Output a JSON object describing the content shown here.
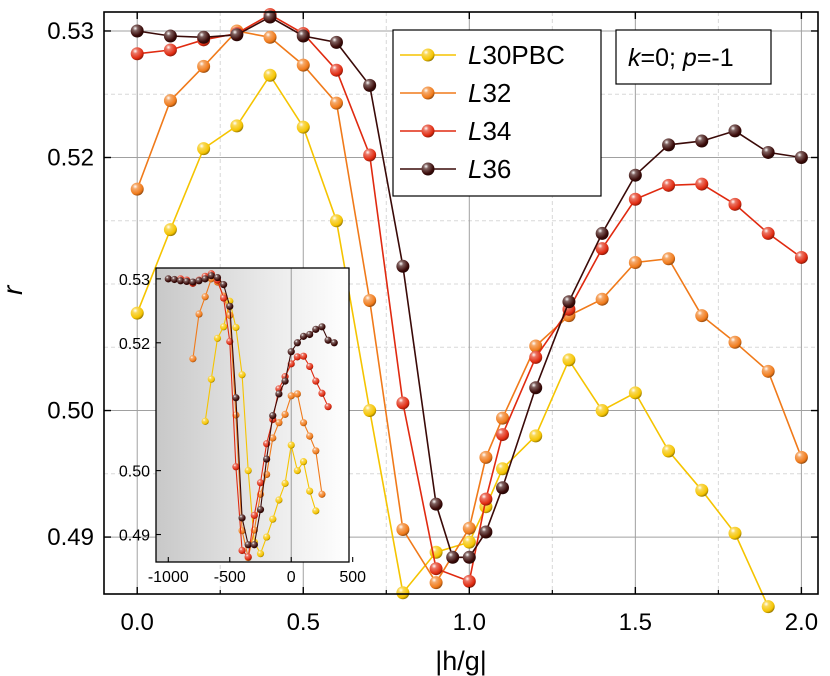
{
  "chart_data": [
    {
      "type": "line",
      "xlabel": "|h/g|",
      "ylabel": "r",
      "xlim": [
        -0.1,
        2.05
      ],
      "ylim": [
        0.4855,
        0.5315
      ],
      "xticks": [
        "0.0",
        "0.5",
        "1.0",
        "1.5",
        "2.0"
      ],
      "yticks": [
        "0.49",
        "0.50",
        "0.52",
        "0.53"
      ],
      "annotation": {
        "k_label": "k",
        "k_value": "=0; ",
        "p_label": "p",
        "p_value": "=-1"
      },
      "series": [
        {
          "name": "L30PBC",
          "prefix": "L",
          "suffix": "30PBC",
          "color": "#f5c400",
          "x": [
            0,
            0.1,
            0.2,
            0.3,
            0.4,
            0.5,
            0.6,
            0.7,
            0.8,
            0.9,
            1.0,
            1.05,
            1.1,
            1.2,
            1.3,
            1.4,
            1.5,
            1.6,
            1.7,
            1.8,
            1.9
          ],
          "y": [
            0.5077,
            0.5143,
            0.5207,
            0.5225,
            0.5265,
            0.5224,
            0.515,
            0.5,
            0.4856,
            0.4888,
            0.4896,
            0.4924,
            0.4954,
            0.498,
            0.504,
            0.5,
            0.5014,
            0.4968,
            0.4937,
            0.4903,
            0.4845
          ]
        },
        {
          "name": "L32",
          "prefix": "L",
          "suffix": "32",
          "color": "#f07a1a",
          "x": [
            0,
            0.1,
            0.2,
            0.3,
            0.4,
            0.5,
            0.6,
            0.7,
            0.8,
            0.9,
            1.0,
            1.05,
            1.1,
            1.2,
            1.3,
            1.4,
            1.5,
            1.6,
            1.7,
            1.8,
            1.9,
            2.0
          ],
          "y": [
            0.5175,
            0.5245,
            0.5272,
            0.53,
            0.5295,
            0.5273,
            0.5243,
            0.5087,
            0.4906,
            0.4864,
            0.4907,
            0.4963,
            0.4994,
            0.5051,
            0.5075,
            0.5088,
            0.5117,
            0.512,
            0.5075,
            0.5054,
            0.5031,
            0.4963
          ]
        },
        {
          "name": "L34",
          "prefix": "L",
          "suffix": "34",
          "color": "#e02a10",
          "x": [
            0,
            0.1,
            0.2,
            0.3,
            0.4,
            0.5,
            0.6,
            0.7,
            0.8,
            0.9,
            1.0,
            1.05,
            1.1,
            1.2,
            1.3,
            1.4,
            1.5,
            1.6,
            1.7,
            1.8,
            1.9,
            2.0
          ],
          "y": [
            0.5282,
            0.5285,
            0.5293,
            0.5298,
            0.5313,
            0.5298,
            0.5269,
            0.5202,
            0.5006,
            0.4875,
            0.4865,
            0.493,
            0.4981,
            0.5042,
            0.508,
            0.5128,
            0.5167,
            0.5178,
            0.5179,
            0.5163,
            0.514,
            0.5121
          ]
        },
        {
          "name": "L36",
          "prefix": "L",
          "suffix": "36",
          "color": "#3a0a08",
          "x": [
            0,
            0.1,
            0.2,
            0.3,
            0.4,
            0.5,
            0.6,
            0.7,
            0.8,
            0.9,
            0.95,
            1.0,
            1.05,
            1.1,
            1.2,
            1.3,
            1.4,
            1.5,
            1.6,
            1.7,
            1.8,
            1.9,
            2.0
          ],
          "y": [
            0.53,
            0.5296,
            0.5295,
            0.5297,
            0.5311,
            0.5296,
            0.5291,
            0.5257,
            0.5114,
            0.4926,
            0.4884,
            0.4884,
            0.4904,
            0.4939,
            0.5018,
            0.5086,
            0.514,
            0.5186,
            0.521,
            0.5213,
            0.5221,
            0.5204,
            0.52
          ]
        }
      ]
    },
    {
      "type": "line",
      "inset": true,
      "xlim": [
        -1100,
        470
      ],
      "ylim": [
        0.4857,
        0.5317
      ],
      "xticks": [
        "-1000",
        "-500",
        "0",
        "500"
      ],
      "yticks": [
        "0.49",
        "0.50",
        "0.52",
        "0.53"
      ],
      "series": [
        {
          "name": "L30PBC",
          "color": "#f5c400",
          "x": [
            -700,
            -650,
            -600,
            -550,
            -500,
            -450,
            -400,
            -350,
            -300,
            -250,
            -200,
            -150,
            -100,
            -50,
            0,
            50,
            100,
            150,
            200
          ],
          "y": [
            0.5077,
            0.5143,
            0.5207,
            0.5225,
            0.5265,
            0.5224,
            0.515,
            0.5,
            0.4888,
            0.487,
            0.4896,
            0.4924,
            0.4954,
            0.498,
            0.504,
            0.5,
            0.5014,
            0.4968,
            0.4937
          ]
        },
        {
          "name": "L32",
          "color": "#f07a1a",
          "x": [
            -800,
            -750,
            -700,
            -650,
            -600,
            -550,
            -500,
            -450,
            -400,
            -350,
            -300,
            -250,
            -200,
            -150,
            -100,
            -50,
            0,
            50,
            100,
            150,
            200,
            250
          ],
          "y": [
            0.5175,
            0.5245,
            0.5272,
            0.53,
            0.5295,
            0.5273,
            0.5243,
            0.5087,
            0.4906,
            0.4864,
            0.4907,
            0.4963,
            0.4994,
            0.5051,
            0.5075,
            0.5088,
            0.5117,
            0.512,
            0.5075,
            0.5054,
            0.5031,
            0.4963
          ]
        },
        {
          "name": "L34",
          "color": "#e02a10",
          "x": [
            -900,
            -850,
            -800,
            -750,
            -700,
            -650,
            -600,
            -550,
            -500,
            -450,
            -400,
            -350,
            -300,
            -250,
            -200,
            -150,
            -100,
            -50,
            0,
            50,
            100,
            150,
            200,
            250,
            300
          ],
          "y": [
            0.53,
            0.5298,
            0.5293,
            0.5298,
            0.5304,
            0.5308,
            0.5298,
            0.527,
            0.5202,
            0.5006,
            0.4875,
            0.4865,
            0.493,
            0.4981,
            0.5042,
            0.508,
            0.5128,
            0.5147,
            0.5167,
            0.5178,
            0.5179,
            0.5163,
            0.514,
            0.5121,
            0.51
          ]
        },
        {
          "name": "L36",
          "color": "#3a0a08",
          "x": [
            -1000,
            -950,
            -900,
            -850,
            -800,
            -750,
            -700,
            -650,
            -600,
            -550,
            -500,
            -450,
            -400,
            -350,
            -300,
            -250,
            -200,
            -150,
            -100,
            -50,
            0,
            50,
            100,
            150,
            200,
            250,
            300,
            350
          ],
          "y": [
            0.53,
            0.5299,
            0.5297,
            0.5296,
            0.5295,
            0.5297,
            0.53,
            0.5305,
            0.5302,
            0.5291,
            0.5257,
            0.5114,
            0.4926,
            0.4884,
            0.4884,
            0.4939,
            0.5018,
            0.5086,
            0.512,
            0.514,
            0.5186,
            0.52,
            0.521,
            0.5213,
            0.5221,
            0.5225,
            0.5204,
            0.52
          ]
        }
      ]
    }
  ]
}
